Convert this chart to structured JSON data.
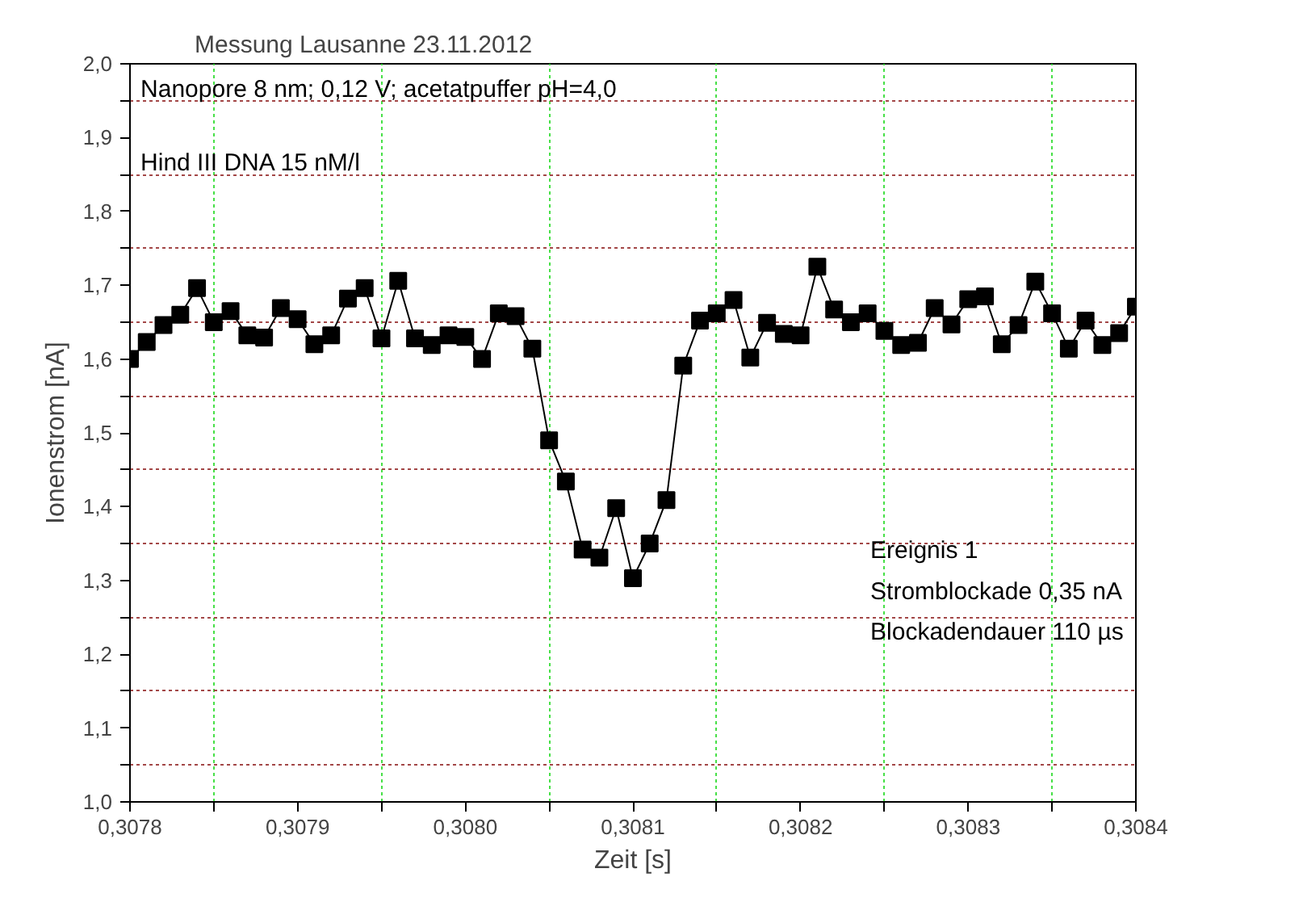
{
  "chart_data": {
    "type": "line",
    "title": "Messung Lausanne 23.11.2012",
    "xlabel": "Zeit [s]",
    "ylabel": "Ionenstrom [nA]",
    "annotations": [
      "Nanopore 8 nm;  0,12 V; acetatpuffer pH=4,0",
      "Hind III DNA 15 nM/l",
      "Ereignis 1",
      "Stromblockade    0,35 nA",
      "Blockadendauer   110 µs"
    ],
    "x": [
      0.3078,
      0.30781,
      0.30782,
      0.30783,
      0.30784,
      0.30785,
      0.30786,
      0.30787,
      0.30788,
      0.30789,
      0.3079,
      0.30791,
      0.30792,
      0.30793,
      0.30794,
      0.30795,
      0.30796,
      0.30797,
      0.30798,
      0.30799,
      0.308,
      0.30801,
      0.30802,
      0.30803,
      0.30804,
      0.30805,
      0.30806,
      0.30807,
      0.30808,
      0.30809,
      0.3081,
      0.30811,
      0.30812,
      0.30813,
      0.30814,
      0.30815,
      0.30816,
      0.30817,
      0.30818,
      0.30819,
      0.3082,
      0.30821,
      0.30822,
      0.30823,
      0.30824,
      0.30825,
      0.30826,
      0.30827,
      0.30828,
      0.30829,
      0.3083,
      0.30831,
      0.30832,
      0.30833,
      0.30834,
      0.30835,
      0.30836,
      0.30837,
      0.30838,
      0.30839,
      0.3084
    ],
    "series": [
      {
        "color": "#000000",
        "values": [
          1.6,
          1.623,
          1.646,
          1.66,
          1.696,
          1.65,
          1.665,
          1.632,
          1.629,
          1.669,
          1.654,
          1.62,
          1.632,
          1.682,
          1.696,
          1.628,
          1.706,
          1.628,
          1.619,
          1.632,
          1.63,
          1.6,
          1.662,
          1.658,
          1.614,
          1.49,
          1.434,
          1.342,
          1.331,
          1.398,
          1.303,
          1.35,
          1.409,
          1.591,
          1.652,
          1.662,
          1.68,
          1.602,
          1.649,
          1.634,
          1.632,
          1.725,
          1.667,
          1.65,
          1.662,
          1.638,
          1.619,
          1.622,
          1.669,
          1.647,
          1.681,
          1.685,
          1.62,
          1.646,
          1.705,
          1.662,
          1.614,
          1.652,
          1.619,
          1.635,
          1.671
        ]
      }
    ],
    "marker": "square",
    "line_style": "solid",
    "grid": true,
    "xlim": [
      0.3078,
      0.3084
    ],
    "xticks": [
      {
        "value": 0.3078,
        "label": "0,3078"
      },
      {
        "value": 0.30785,
        "label": null
      },
      {
        "value": 0.3079,
        "label": "0,3079"
      },
      {
        "value": 0.30795,
        "label": null
      },
      {
        "value": 0.308,
        "label": "0,3080"
      },
      {
        "value": 0.30805,
        "label": null
      },
      {
        "value": 0.3081,
        "label": "0,3081"
      },
      {
        "value": 0.30815,
        "label": null
      },
      {
        "value": 0.3082,
        "label": "0,3082"
      },
      {
        "value": 0.30825,
        "label": null
      },
      {
        "value": 0.3083,
        "label": "0,3083"
      },
      {
        "value": 0.30835,
        "label": null
      },
      {
        "value": 0.3084,
        "label": "0,3084"
      }
    ],
    "ylim": [
      1.0,
      2.0
    ],
    "yticks": [
      {
        "value": 1.0,
        "label": "1,0"
      },
      {
        "value": 1.05,
        "label": null
      },
      {
        "value": 1.1,
        "label": "1,1"
      },
      {
        "value": 1.15,
        "label": null
      },
      {
        "value": 1.2,
        "label": "1,2"
      },
      {
        "value": 1.25,
        "label": null
      },
      {
        "value": 1.3,
        "label": "1,3"
      },
      {
        "value": 1.35,
        "label": null
      },
      {
        "value": 1.4,
        "label": "1,4"
      },
      {
        "value": 1.45,
        "label": null
      },
      {
        "value": 1.5,
        "label": "1,5"
      },
      {
        "value": 1.55,
        "label": null
      },
      {
        "value": 1.6,
        "label": "1,6"
      },
      {
        "value": 1.65,
        "label": null
      },
      {
        "value": 1.7,
        "label": "1,7"
      },
      {
        "value": 1.75,
        "label": null
      },
      {
        "value": 1.8,
        "label": "1,8"
      },
      {
        "value": 1.85,
        "label": null
      },
      {
        "value": 1.9,
        "label": "1,9"
      },
      {
        "value": 1.95,
        "label": null
      },
      {
        "value": 2.0,
        "label": "2,0"
      }
    ]
  }
}
